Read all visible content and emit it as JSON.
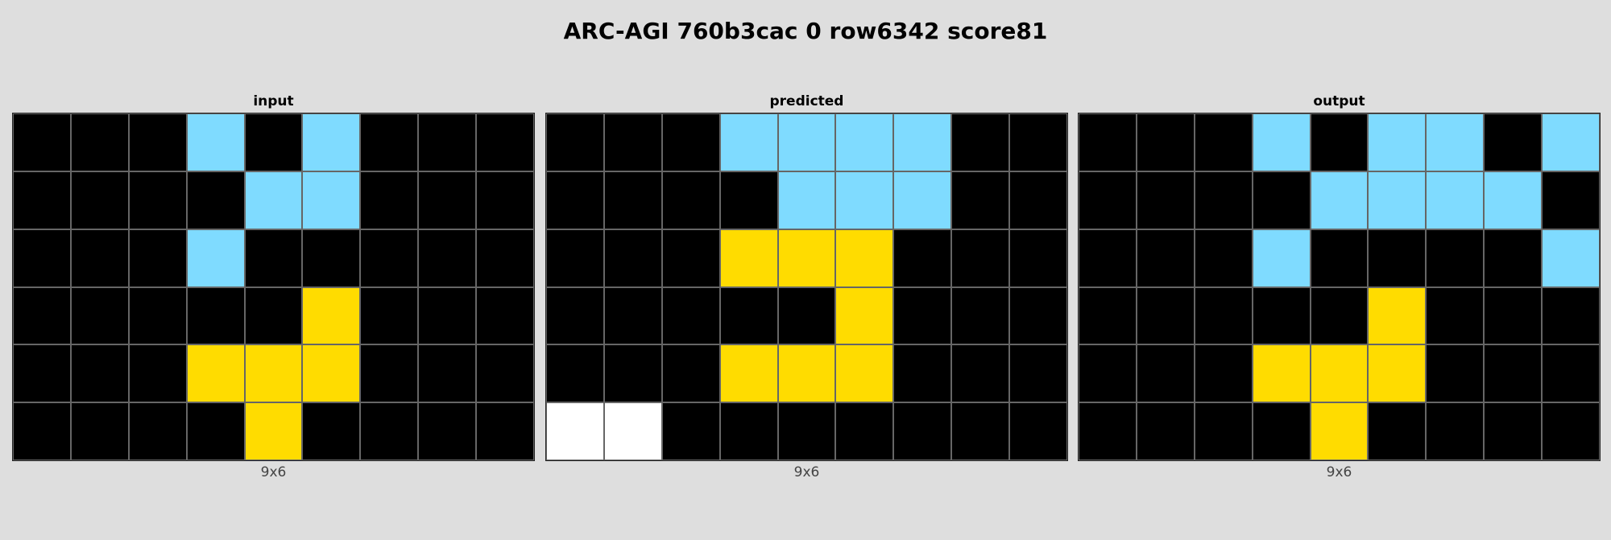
{
  "title": "ARC-AGI 760b3cac 0 row6342 score81",
  "palette": {
    "0": "#000000",
    "1": "#0074d9",
    "2": "#ff4136",
    "3": "#2ecc40",
    "4": "#ffdc00",
    "5": "#aaaaaa",
    "6": "#f012be",
    "7": "#ff851b",
    "8": "#7fdbff",
    "9": "#870c25",
    "w": "#ffffff"
  },
  "panels": [
    {
      "label": "input",
      "dims": "9x6",
      "grid": [
        [
          0,
          0,
          0,
          8,
          0,
          8,
          0,
          0,
          0
        ],
        [
          0,
          0,
          0,
          0,
          8,
          8,
          0,
          0,
          0
        ],
        [
          0,
          0,
          0,
          8,
          0,
          0,
          0,
          0,
          0
        ],
        [
          0,
          0,
          0,
          0,
          0,
          4,
          0,
          0,
          0
        ],
        [
          0,
          0,
          0,
          4,
          4,
          4,
          0,
          0,
          0
        ],
        [
          0,
          0,
          0,
          0,
          4,
          0,
          0,
          0,
          0
        ]
      ]
    },
    {
      "label": "predicted",
      "dims": "9x6",
      "grid": [
        [
          0,
          0,
          0,
          8,
          8,
          8,
          8,
          0,
          0
        ],
        [
          0,
          0,
          0,
          0,
          8,
          8,
          8,
          0,
          0
        ],
        [
          0,
          0,
          0,
          4,
          4,
          4,
          0,
          0,
          0
        ],
        [
          0,
          0,
          0,
          0,
          0,
          4,
          0,
          0,
          0
        ],
        [
          0,
          0,
          0,
          4,
          4,
          4,
          0,
          0,
          0
        ],
        [
          "w",
          "w",
          0,
          0,
          0,
          0,
          0,
          0,
          0
        ]
      ]
    },
    {
      "label": "output",
      "dims": "9x6",
      "grid": [
        [
          0,
          0,
          0,
          8,
          0,
          8,
          8,
          0,
          8
        ],
        [
          0,
          0,
          0,
          0,
          8,
          8,
          8,
          8,
          0
        ],
        [
          0,
          0,
          0,
          8,
          0,
          0,
          0,
          0,
          8
        ],
        [
          0,
          0,
          0,
          0,
          0,
          4,
          0,
          0,
          0
        ],
        [
          0,
          0,
          0,
          4,
          4,
          4,
          0,
          0,
          0
        ],
        [
          0,
          0,
          0,
          0,
          4,
          0,
          0,
          0,
          0
        ]
      ]
    }
  ]
}
